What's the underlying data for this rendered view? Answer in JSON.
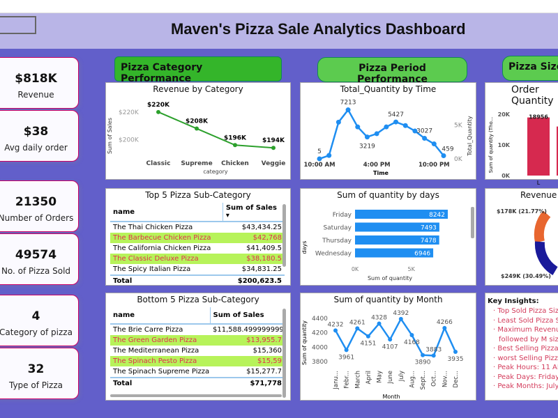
{
  "header": {
    "title": "Maven's Pizza Sale Analytics Dashboard"
  },
  "kpis": [
    {
      "value": "$818K",
      "label": "Revenue"
    },
    {
      "value": "$38",
      "label": "Avg daily order"
    },
    {
      "value": "21350",
      "label": "Number of Orders"
    },
    {
      "value": "49574",
      "label": "No. of Pizza Sold"
    },
    {
      "value": "4",
      "label": "Category of pizza"
    },
    {
      "value": "32",
      "label": "Type of Pizza"
    }
  ],
  "sections": {
    "category": "Pizza Category  Performance",
    "period": "Pizza Period Performance",
    "size": "Pizza Size"
  },
  "colors": {
    "green": "#2ca02c",
    "blue": "#1f8ef1",
    "red": "#d6294f",
    "orange": "#e8662f",
    "navy": "#1a1a9a"
  },
  "chart_data": [
    {
      "type": "line",
      "title": "Revenue by Category",
      "xlabel": "category",
      "ylabel": "Sum of Sales",
      "categories": [
        "Classic",
        "Supreme",
        "Chicken",
        "Veggie"
      ],
      "values": [
        220,
        208,
        196,
        194
      ],
      "labels": [
        "$220K",
        "$208K",
        "$196K",
        "$194K"
      ],
      "yticks": [
        "$220K",
        "$200K"
      ],
      "ylim": [
        185,
        228
      ]
    },
    {
      "type": "line",
      "title": "Total_Quantity by Time",
      "xlabel": "Time",
      "ylabel": "Total_Quantity",
      "x": [
        "10 AM",
        "11 AM",
        "12 PM",
        "1 PM",
        "2 PM",
        "3 PM",
        "4 PM",
        "5 PM",
        "6 PM",
        "7 PM",
        "8 PM",
        "9 PM",
        "10 PM",
        "11 PM"
      ],
      "values": [
        5,
        500,
        5400,
        7213,
        4700,
        3219,
        3700,
        4700,
        5427,
        4900,
        4100,
        3027,
        2200,
        459
      ],
      "labels": [
        "5",
        "",
        "",
        "7213",
        "",
        "3219",
        "",
        "",
        "5427",
        "",
        "",
        "3027",
        "",
        "459"
      ],
      "xticks": [
        "10:00 AM",
        "4:00 PM",
        "10:00 PM"
      ],
      "yticks": [
        "5K",
        "0K"
      ],
      "ylim": [
        0,
        8000
      ]
    },
    {
      "type": "bar",
      "title": "Sum of quantity by days",
      "xlabel": "Sum of quantity",
      "ylabel": "days",
      "categories": [
        "Friday",
        "Saturday",
        "Thursday",
        "Wednesday"
      ],
      "values": [
        8242,
        7493,
        7478,
        6946
      ],
      "xticks": [
        "0K",
        "5K"
      ],
      "xlim": [
        0,
        9000
      ]
    },
    {
      "type": "line",
      "title": "Sum of quantity by Month",
      "xlabel": "Month",
      "ylabel": "Sum of quantity",
      "categories": [
        "Janu...",
        "Febr...",
        "March",
        "April",
        "May",
        "June",
        "July",
        "Aug...",
        "Sept...",
        "Oct...",
        "Nov...",
        "Dec..."
      ],
      "values": [
        4232,
        3961,
        4261,
        4151,
        4328,
        4107,
        4392,
        4168,
        3890,
        3883,
        4266,
        3935
      ],
      "yticks": [
        4400,
        4200,
        4000,
        3800
      ],
      "ylim": [
        3750,
        4430
      ]
    },
    {
      "type": "bar",
      "title": "Order Quantity",
      "ylabel": "Sum of quantity (Tho...",
      "categories": [
        "L"
      ],
      "values": [
        18956
      ],
      "yticks": [
        "20K",
        "10K",
        "0K"
      ],
      "ylim": [
        0,
        20000
      ]
    },
    {
      "type": "pie",
      "title": "Revenue",
      "slices": [
        {
          "label": "$178K (21.77%)",
          "value": 21.77
        },
        {
          "label": "$249K (30.49%)",
          "value": 30.49
        }
      ]
    }
  ],
  "top5": {
    "title": "Top 5 Pizza Sub-Category",
    "headers": [
      "name",
      "Sum of Sales"
    ],
    "rows": [
      [
        "The Thai Chicken Pizza",
        "$43,434.25"
      ],
      [
        "The Barbecue Chicken Pizza",
        "$42,768"
      ],
      [
        "The California Chicken Pizza",
        "$41,409.5"
      ],
      [
        "The Classic Deluxe Pizza",
        "$38,180.5"
      ],
      [
        "The Spicy Italian Pizza",
        "$34,831.25"
      ]
    ],
    "total": [
      "Total",
      "$200,623.5"
    ]
  },
  "bottom5": {
    "title": "Bottom 5 Pizza Sub-Category",
    "headers": [
      "name",
      "Sum of Sales"
    ],
    "rows": [
      [
        "The Brie Carre Pizza",
        "$11,588.4999999999"
      ],
      [
        "The Green Garden Pizza",
        "$13,955.7"
      ],
      [
        "The Mediterranean Pizza",
        "$15,360"
      ],
      [
        "The Spinach Pesto Pizza",
        "$15,59"
      ],
      [
        "The Spinach Supreme Pizza",
        "$15,277.7"
      ]
    ],
    "total": [
      "Total",
      "$71,778"
    ]
  },
  "insights": {
    "title": "Key Insights:",
    "items": [
      "Top Sold Pizza Siz",
      "Least Sold Pizza S",
      "Maximum Revenu",
      "followed by M size",
      "Best Selling Pizza",
      "worst Selling Pizza",
      "Peak Hours: 11 AM",
      "Peak Days: Friday, S",
      "Peak Months: July"
    ]
  }
}
